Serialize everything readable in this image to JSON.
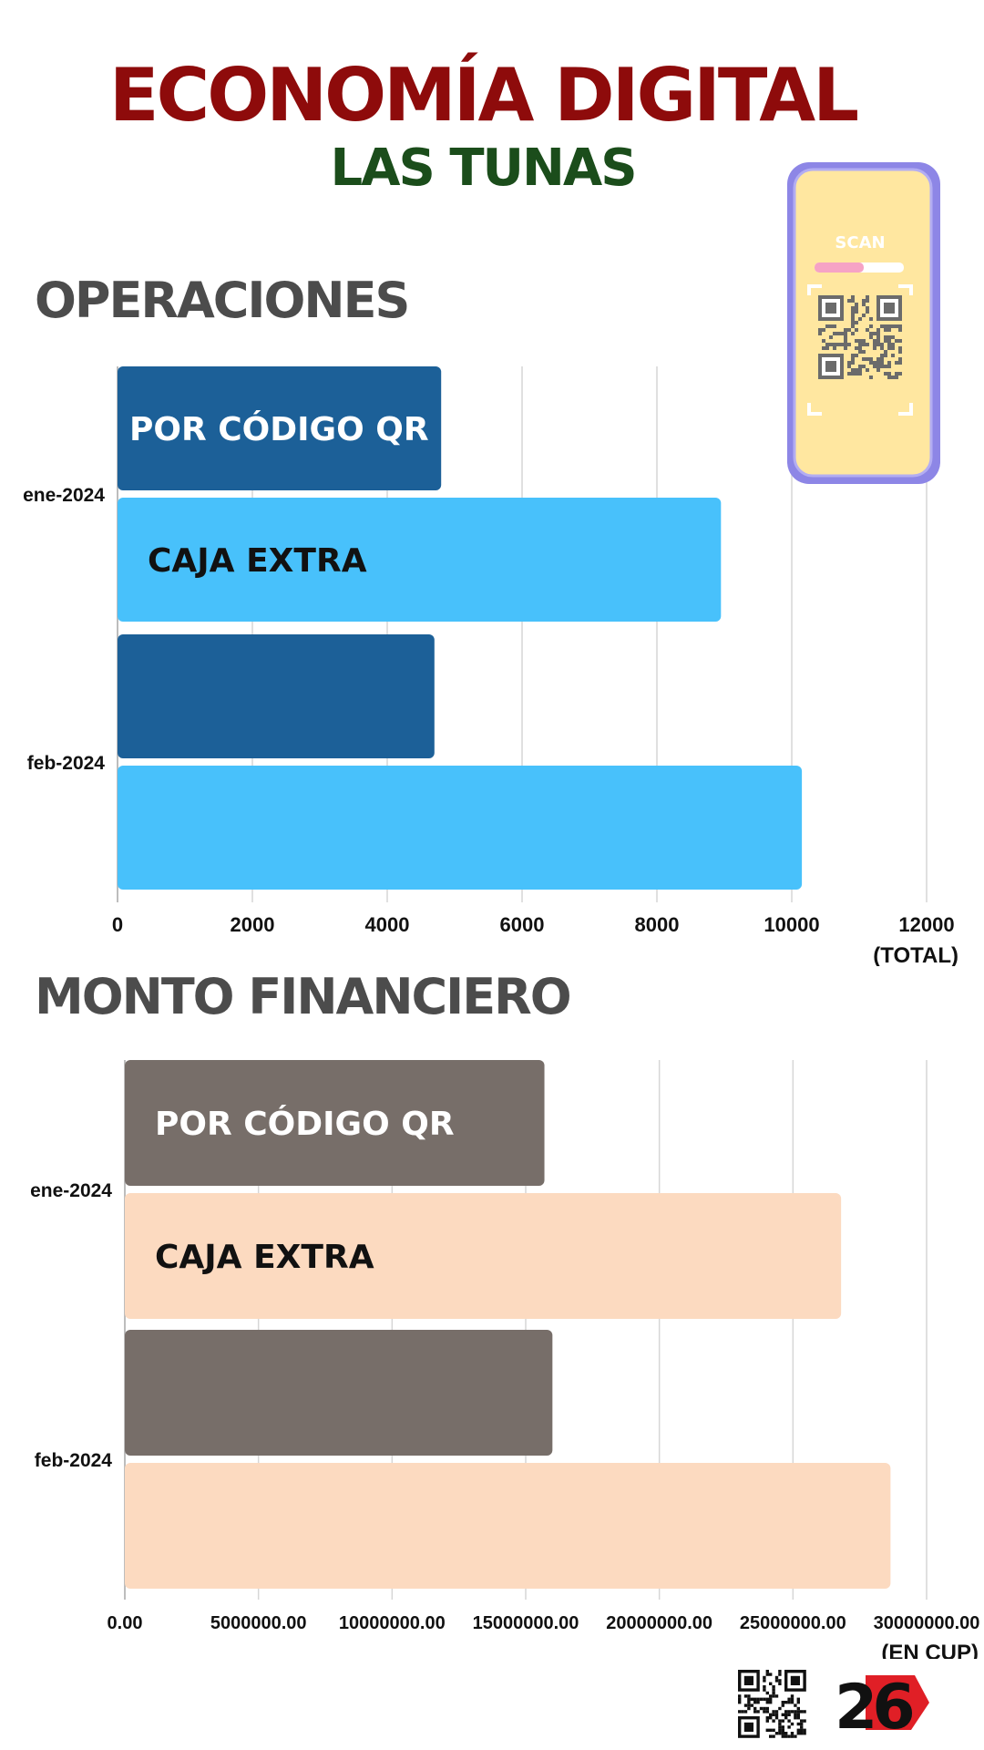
{
  "header": {
    "title": "ECONOMÍA DIGITAL",
    "subtitle": "LAS TUNAS"
  },
  "sections": {
    "operations_title": "OPERACIONES",
    "amount_title": "MONTO FINANCIERO"
  },
  "phone": {
    "scan_label": "SCAN"
  },
  "logo": {
    "text": "26"
  },
  "colors": {
    "title": "#8e0b0b",
    "subtitle": "#1b4d1b",
    "ops_qr": "#1c6098",
    "ops_caja": "#48c1fb",
    "amt_qr": "#776e69",
    "amt_caja": "#fcdac0"
  },
  "chart_data": [
    {
      "type": "bar",
      "orientation": "horizontal",
      "categories": [
        "ene-2024",
        "feb-2024"
      ],
      "series": [
        {
          "name": "POR CÓDIGO QR",
          "values": [
            4800,
            4700
          ]
        },
        {
          "name": "CAJA EXTRA",
          "values": [
            8950,
            10150
          ]
        }
      ],
      "xlim": [
        0,
        12000
      ],
      "x_ticks": [
        "0",
        "2000",
        "4000",
        "6000",
        "8000",
        "10000",
        "12000"
      ],
      "x_unit_label": "(TOTAL)",
      "grid": true
    },
    {
      "type": "bar",
      "orientation": "horizontal",
      "categories": [
        "ene-2024",
        "feb-2024"
      ],
      "series": [
        {
          "name": "POR CÓDIGO QR",
          "values": [
            15700000,
            16000000
          ]
        },
        {
          "name": "CAJA EXTRA",
          "values": [
            26800000,
            28650000
          ]
        }
      ],
      "xlim": [
        0,
        30000000
      ],
      "x_ticks": [
        "0.00",
        "5000000.00",
        "10000000.00",
        "15000000.00",
        "20000000.00",
        "25000000.00",
        "30000000.00"
      ],
      "x_unit_label": "(EN CUP)",
      "grid": true
    }
  ]
}
